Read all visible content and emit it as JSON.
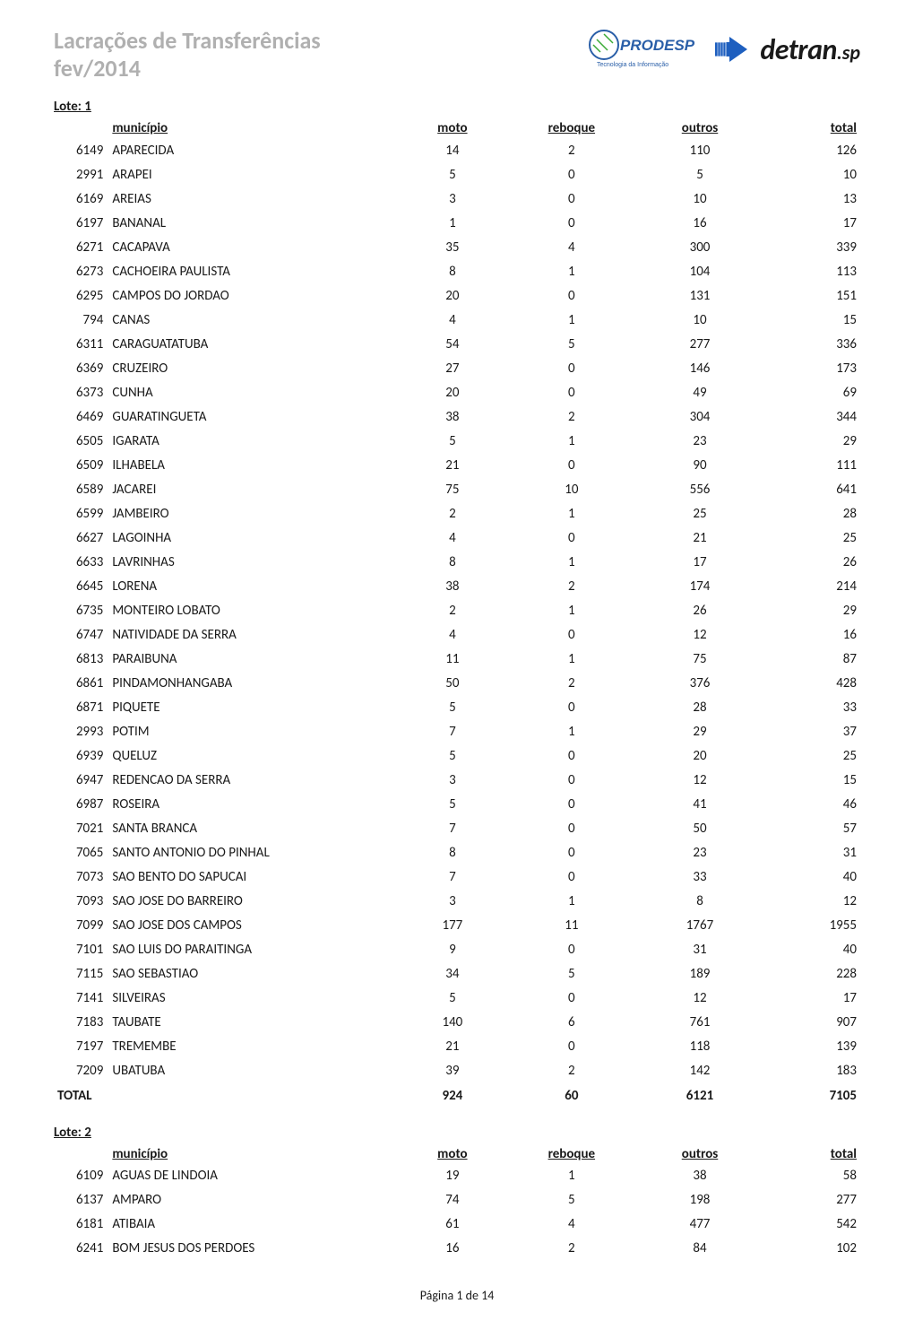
{
  "title_line1": "Lacrações de Transferências",
  "title_line2": "fev/2014",
  "prodesp_label": "PRODESP",
  "prodesp_tagline": "Tecnologia da Informação",
  "detran_main": "detran",
  "detran_dot": ".",
  "detran_sp": "sp",
  "lote1": {
    "label": "Lote: 1",
    "headers": {
      "municipio": "município",
      "moto": "moto",
      "reboque": "reboque",
      "outros": "outros",
      "total": "total"
    },
    "rows": [
      {
        "code": "6149",
        "name": "APARECIDA",
        "moto": 14,
        "reboque": 2,
        "outros": 110,
        "total": 126
      },
      {
        "code": "2991",
        "name": "ARAPEI",
        "moto": 5,
        "reboque": 0,
        "outros": 5,
        "total": 10
      },
      {
        "code": "6169",
        "name": "AREIAS",
        "moto": 3,
        "reboque": 0,
        "outros": 10,
        "total": 13
      },
      {
        "code": "6197",
        "name": "BANANAL",
        "moto": 1,
        "reboque": 0,
        "outros": 16,
        "total": 17
      },
      {
        "code": "6271",
        "name": "CACAPAVA",
        "moto": 35,
        "reboque": 4,
        "outros": 300,
        "total": 339
      },
      {
        "code": "6273",
        "name": "CACHOEIRA PAULISTA",
        "moto": 8,
        "reboque": 1,
        "outros": 104,
        "total": 113
      },
      {
        "code": "6295",
        "name": "CAMPOS DO JORDAO",
        "moto": 20,
        "reboque": 0,
        "outros": 131,
        "total": 151
      },
      {
        "code": "794",
        "name": "CANAS",
        "moto": 4,
        "reboque": 1,
        "outros": 10,
        "total": 15
      },
      {
        "code": "6311",
        "name": "CARAGUATATUBA",
        "moto": 54,
        "reboque": 5,
        "outros": 277,
        "total": 336
      },
      {
        "code": "6369",
        "name": "CRUZEIRO",
        "moto": 27,
        "reboque": 0,
        "outros": 146,
        "total": 173
      },
      {
        "code": "6373",
        "name": "CUNHA",
        "moto": 20,
        "reboque": 0,
        "outros": 49,
        "total": 69
      },
      {
        "code": "6469",
        "name": "GUARATINGUETA",
        "moto": 38,
        "reboque": 2,
        "outros": 304,
        "total": 344
      },
      {
        "code": "6505",
        "name": "IGARATA",
        "moto": 5,
        "reboque": 1,
        "outros": 23,
        "total": 29
      },
      {
        "code": "6509",
        "name": "ILHABELA",
        "moto": 21,
        "reboque": 0,
        "outros": 90,
        "total": 111
      },
      {
        "code": "6589",
        "name": "JACAREI",
        "moto": 75,
        "reboque": 10,
        "outros": 556,
        "total": 641
      },
      {
        "code": "6599",
        "name": "JAMBEIRO",
        "moto": 2,
        "reboque": 1,
        "outros": 25,
        "total": 28
      },
      {
        "code": "6627",
        "name": "LAGOINHA",
        "moto": 4,
        "reboque": 0,
        "outros": 21,
        "total": 25
      },
      {
        "code": "6633",
        "name": "LAVRINHAS",
        "moto": 8,
        "reboque": 1,
        "outros": 17,
        "total": 26
      },
      {
        "code": "6645",
        "name": "LORENA",
        "moto": 38,
        "reboque": 2,
        "outros": 174,
        "total": 214
      },
      {
        "code": "6735",
        "name": "MONTEIRO LOBATO",
        "moto": 2,
        "reboque": 1,
        "outros": 26,
        "total": 29
      },
      {
        "code": "6747",
        "name": "NATIVIDADE DA SERRA",
        "moto": 4,
        "reboque": 0,
        "outros": 12,
        "total": 16
      },
      {
        "code": "6813",
        "name": "PARAIBUNA",
        "moto": 11,
        "reboque": 1,
        "outros": 75,
        "total": 87
      },
      {
        "code": "6861",
        "name": "PINDAMONHANGABA",
        "moto": 50,
        "reboque": 2,
        "outros": 376,
        "total": 428
      },
      {
        "code": "6871",
        "name": "PIQUETE",
        "moto": 5,
        "reboque": 0,
        "outros": 28,
        "total": 33
      },
      {
        "code": "2993",
        "name": "POTIM",
        "moto": 7,
        "reboque": 1,
        "outros": 29,
        "total": 37
      },
      {
        "code": "6939",
        "name": "QUELUZ",
        "moto": 5,
        "reboque": 0,
        "outros": 20,
        "total": 25
      },
      {
        "code": "6947",
        "name": "REDENCAO DA SERRA",
        "moto": 3,
        "reboque": 0,
        "outros": 12,
        "total": 15
      },
      {
        "code": "6987",
        "name": "ROSEIRA",
        "moto": 5,
        "reboque": 0,
        "outros": 41,
        "total": 46
      },
      {
        "code": "7021",
        "name": "SANTA BRANCA",
        "moto": 7,
        "reboque": 0,
        "outros": 50,
        "total": 57
      },
      {
        "code": "7065",
        "name": "SANTO ANTONIO DO PINHAL",
        "moto": 8,
        "reboque": 0,
        "outros": 23,
        "total": 31
      },
      {
        "code": "7073",
        "name": "SAO BENTO DO SAPUCAI",
        "moto": 7,
        "reboque": 0,
        "outros": 33,
        "total": 40
      },
      {
        "code": "7093",
        "name": "SAO JOSE DO BARREIRO",
        "moto": 3,
        "reboque": 1,
        "outros": 8,
        "total": 12
      },
      {
        "code": "7099",
        "name": "SAO JOSE DOS CAMPOS",
        "moto": 177,
        "reboque": 11,
        "outros": 1767,
        "total": 1955
      },
      {
        "code": "7101",
        "name": "SAO LUIS DO PARAITINGA",
        "moto": 9,
        "reboque": 0,
        "outros": 31,
        "total": 40
      },
      {
        "code": "7115",
        "name": "SAO SEBASTIAO",
        "moto": 34,
        "reboque": 5,
        "outros": 189,
        "total": 228
      },
      {
        "code": "7141",
        "name": "SILVEIRAS",
        "moto": 5,
        "reboque": 0,
        "outros": 12,
        "total": 17
      },
      {
        "code": "7183",
        "name": "TAUBATE",
        "moto": 140,
        "reboque": 6,
        "outros": 761,
        "total": 907
      },
      {
        "code": "7197",
        "name": "TREMEMBE",
        "moto": 21,
        "reboque": 0,
        "outros": 118,
        "total": 139
      },
      {
        "code": "7209",
        "name": "UBATUBA",
        "moto": 39,
        "reboque": 2,
        "outros": 142,
        "total": 183
      }
    ],
    "total_label": "TOTAL",
    "totals": {
      "moto": 924,
      "reboque": 60,
      "outros": 6121,
      "total": 7105
    }
  },
  "lote2": {
    "label": "Lote: 2",
    "headers": {
      "municipio": "município",
      "moto": "moto",
      "reboque": "reboque",
      "outros": "outros",
      "total": "total"
    },
    "rows": [
      {
        "code": "6109",
        "name": "AGUAS DE LINDOIA",
        "moto": 19,
        "reboque": 1,
        "outros": 38,
        "total": 58
      },
      {
        "code": "6137",
        "name": "AMPARO",
        "moto": 74,
        "reboque": 5,
        "outros": 198,
        "total": 277
      },
      {
        "code": "6181",
        "name": "ATIBAIA",
        "moto": 61,
        "reboque": 4,
        "outros": 477,
        "total": 542
      },
      {
        "code": "6241",
        "name": "BOM JESUS DOS PERDOES",
        "moto": 16,
        "reboque": 2,
        "outros": 84,
        "total": 102
      }
    ]
  },
  "footer": "Página 1 de 14",
  "colors": {
    "title_gray": "#b0b0b0",
    "text": "#1a1a1a",
    "prodesp_blue": "#2a5fa8",
    "prodesp_green": "#3aaa35",
    "detran_black": "#1a1a1a",
    "detran_blue": "#1e5fbf"
  }
}
